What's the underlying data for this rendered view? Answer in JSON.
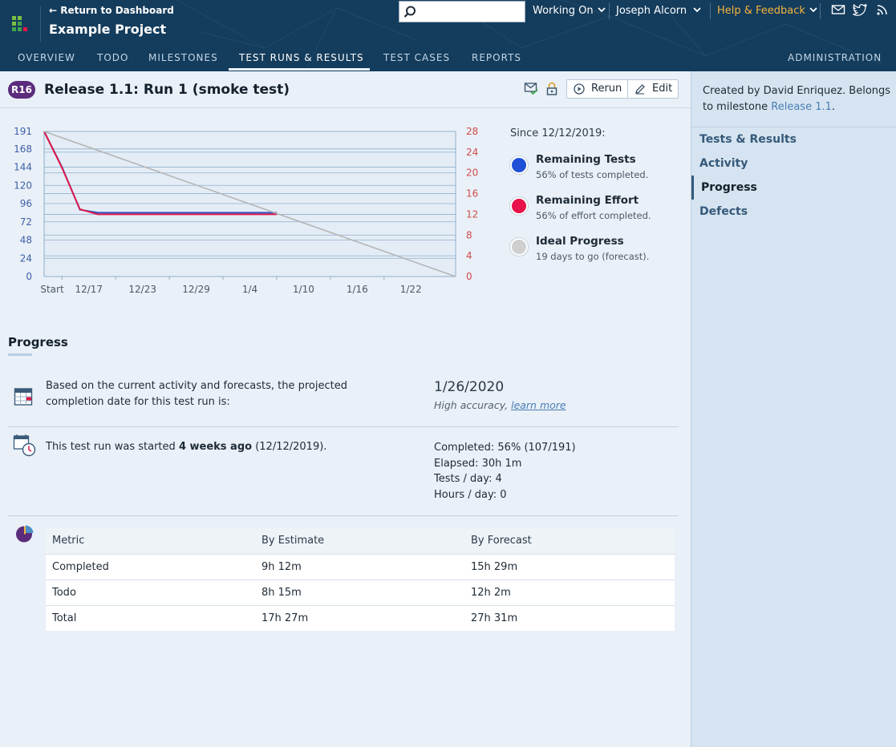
{
  "header": {
    "back_link": "Return to Dashboard",
    "project_title": "Example Project",
    "search_placeholder": "",
    "working_on": "Working On",
    "user": "Joseph Alcorn",
    "help": "Help & Feedback",
    "help_color": "#f5b53d",
    "icons": [
      "mail-icon",
      "twitter-icon",
      "rss-icon"
    ]
  },
  "nav": {
    "tabs": [
      "OVERVIEW",
      "TODO",
      "MILESTONES",
      "TEST RUNS & RESULTS",
      "TEST CASES",
      "REPORTS"
    ],
    "active_tab": "TEST RUNS & RESULTS",
    "admin": "ADMINISTRATION"
  },
  "run": {
    "badge": "R16",
    "badge_color": "#5b2c7c",
    "title": "Release 1.1: Run 1 (smoke test)",
    "rerun_label": "Rerun",
    "edit_label": "Edit"
  },
  "chart_data": {
    "type": "line",
    "x_ticks": [
      "Start",
      "12/17",
      "12/23",
      "12/29",
      "1/4",
      "1/10",
      "1/16",
      "1/22"
    ],
    "y_left_ticks": [
      "191",
      "168",
      "144",
      "120",
      "96",
      "72",
      "48",
      "24",
      "0"
    ],
    "y_right_ticks": [
      "28",
      "24",
      "20",
      "16",
      "12",
      "8",
      "4",
      "0"
    ],
    "y_left_range": [
      0,
      191
    ],
    "y_right_range": [
      0,
      28
    ],
    "x_range_days": [
      0,
      46
    ],
    "grid": true,
    "series": [
      {
        "name": "Remaining Tests",
        "axis": "left",
        "color": "#2855c9",
        "points": [
          [
            0,
            191
          ],
          [
            2,
            144
          ],
          [
            4,
            88
          ],
          [
            6,
            84
          ],
          [
            26,
            84
          ]
        ]
      },
      {
        "name": "Remaining Effort",
        "axis": "right",
        "color": "#e0194a",
        "points": [
          [
            0,
            28
          ],
          [
            2,
            21
          ],
          [
            4,
            13
          ],
          [
            6,
            12
          ],
          [
            26,
            12
          ]
        ]
      },
      {
        "name": "Ideal Progress",
        "axis": "left",
        "color": "#b5b5b5",
        "points": [
          [
            0,
            191
          ],
          [
            46,
            0
          ]
        ]
      }
    ]
  },
  "legend": {
    "since": "Since 12/12/2019:",
    "items": [
      {
        "name": "Remaining Tests",
        "sub": "56% of tests completed.",
        "color": "#1e4fd6"
      },
      {
        "name": "Remaining Effort",
        "sub": "56% of effort completed.",
        "color": "#e8124a"
      },
      {
        "name": "Ideal Progress",
        "sub": "19 days to go (forecast).",
        "color": "#cfcfcf"
      }
    ]
  },
  "progress": {
    "heading": "Progress",
    "forecast_text_1": "Based on the current activity and forecasts, the projected",
    "forecast_text_2": "completion date for this test run is:",
    "completion_date": "1/26/2020",
    "accuracy": "High accuracy,",
    "learn_more": "learn more",
    "started_prefix": "This test run was started",
    "started_bold": "4 weeks ago",
    "started_suffix": "(12/12/2019).",
    "completed": "Completed: 56% (107/191)",
    "elapsed": "Elapsed: 30h 1m",
    "tests_per_day": "Tests / day: 4",
    "hours_per_day": "Hours / day: 0"
  },
  "metrics": {
    "headers": [
      "Metric",
      "By Estimate",
      "By Forecast"
    ],
    "rows": [
      [
        "Completed",
        "9h 12m",
        "15h 29m"
      ],
      [
        "Todo",
        "8h 15m",
        "12h 2m"
      ],
      [
        "Total",
        "17h 27m",
        "27h 31m"
      ]
    ]
  },
  "sidebar": {
    "desc_1": "Created by David Enriquez. Belongs to milestone",
    "milestone_link": "Release 1.1",
    "desc_2": ".",
    "items": [
      "Tests & Results",
      "Activity",
      "Progress",
      "Defects"
    ],
    "active": "Progress"
  }
}
